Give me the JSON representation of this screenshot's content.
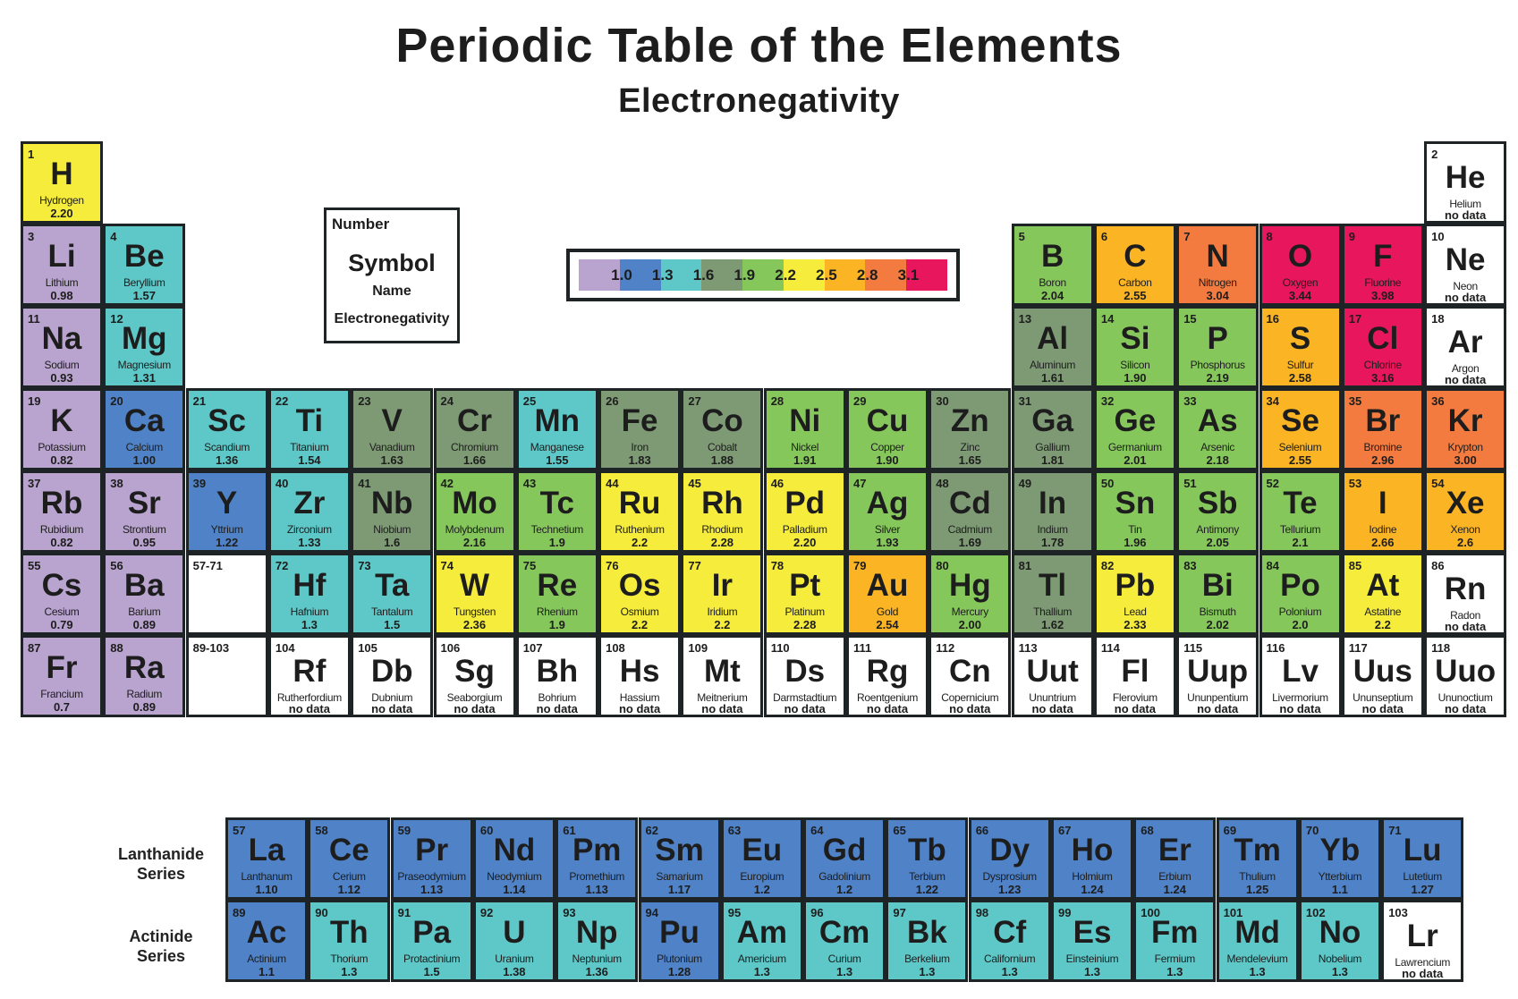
{
  "title": "Periodic Table of the Elements",
  "subtitle": "Electronegativity",
  "key": {
    "number": "Number",
    "symbol": "Symbol",
    "name": "Name",
    "value": "Electronegativity"
  },
  "legend": {
    "bins": [
      {
        "max": 1.0,
        "color": "#b9a3cf",
        "label": "1.0"
      },
      {
        "max": 1.3,
        "color": "#4f82c6",
        "label": "1.3"
      },
      {
        "max": 1.6,
        "color": "#5ec8c8",
        "label": "1.6"
      },
      {
        "max": 1.9,
        "color": "#7e9a75",
        "label": "1.9"
      },
      {
        "max": 2.2,
        "color": "#86c75c",
        "label": "2.2"
      },
      {
        "max": 2.5,
        "color": "#f5ec3b",
        "label": "2.5"
      },
      {
        "max": 2.8,
        "color": "#fbb424",
        "label": "2.8"
      },
      {
        "max": 3.1,
        "color": "#f37b3f",
        "label": "3.1"
      },
      {
        "max": 99,
        "color": "#e8165c",
        "label": ""
      }
    ],
    "nodata_color": "#ffffff"
  },
  "placeholders": [
    {
      "label": "57-71",
      "period": 6,
      "group": 3
    },
    {
      "label": "89-103",
      "period": 7,
      "group": 3
    }
  ],
  "series_labels": {
    "lanthanide": "Lanthanide Series",
    "actinide": "Actinide Series"
  },
  "elements": [
    [
      1,
      "H",
      "Hydrogen",
      "2.20",
      1,
      1
    ],
    [
      2,
      "He",
      "Helium",
      "no data",
      1,
      18
    ],
    [
      3,
      "Li",
      "Lithium",
      "0.98",
      2,
      1
    ],
    [
      4,
      "Be",
      "Beryllium",
      "1.57",
      2,
      2
    ],
    [
      5,
      "B",
      "Boron",
      "2.04",
      2,
      13
    ],
    [
      6,
      "C",
      "Carbon",
      "2.55",
      2,
      14
    ],
    [
      7,
      "N",
      "Nitrogen",
      "3.04",
      2,
      15
    ],
    [
      8,
      "O",
      "Oxygen",
      "3.44",
      2,
      16
    ],
    [
      9,
      "F",
      "Fluorine",
      "3.98",
      2,
      17
    ],
    [
      10,
      "Ne",
      "Neon",
      "no data",
      2,
      18
    ],
    [
      11,
      "Na",
      "Sodium",
      "0.93",
      3,
      1
    ],
    [
      12,
      "Mg",
      "Magnesium",
      "1.31",
      3,
      2
    ],
    [
      13,
      "Al",
      "Aluminum",
      "1.61",
      3,
      13
    ],
    [
      14,
      "Si",
      "Silicon",
      "1.90",
      3,
      14
    ],
    [
      15,
      "P",
      "Phosphorus",
      "2.19",
      3,
      15
    ],
    [
      16,
      "S",
      "Sulfur",
      "2.58",
      3,
      16
    ],
    [
      17,
      "Cl",
      "Chlorine",
      "3.16",
      3,
      17
    ],
    [
      18,
      "Ar",
      "Argon",
      "no data",
      3,
      18
    ],
    [
      19,
      "K",
      "Potassium",
      "0.82",
      4,
      1
    ],
    [
      20,
      "Ca",
      "Calcium",
      "1.00",
      4,
      2
    ],
    [
      21,
      "Sc",
      "Scandium",
      "1.36",
      4,
      3
    ],
    [
      22,
      "Ti",
      "Titanium",
      "1.54",
      4,
      4
    ],
    [
      23,
      "V",
      "Vanadium",
      "1.63",
      4,
      5
    ],
    [
      24,
      "Cr",
      "Chromium",
      "1.66",
      4,
      6
    ],
    [
      25,
      "Mn",
      "Manganese",
      "1.55",
      4,
      7
    ],
    [
      26,
      "Fe",
      "Iron",
      "1.83",
      4,
      8
    ],
    [
      27,
      "Co",
      "Cobalt",
      "1.88",
      4,
      9
    ],
    [
      28,
      "Ni",
      "Nickel",
      "1.91",
      4,
      10
    ],
    [
      29,
      "Cu",
      "Copper",
      "1.90",
      4,
      11
    ],
    [
      30,
      "Zn",
      "Zinc",
      "1.65",
      4,
      12
    ],
    [
      31,
      "Ga",
      "Gallium",
      "1.81",
      4,
      13
    ],
    [
      32,
      "Ge",
      "Germanium",
      "2.01",
      4,
      14
    ],
    [
      33,
      "As",
      "Arsenic",
      "2.18",
      4,
      15
    ],
    [
      34,
      "Se",
      "Selenium",
      "2.55",
      4,
      16
    ],
    [
      35,
      "Br",
      "Bromine",
      "2.96",
      4,
      17
    ],
    [
      36,
      "Kr",
      "Krypton",
      "3.00",
      4,
      18
    ],
    [
      37,
      "Rb",
      "Rubidium",
      "0.82",
      5,
      1
    ],
    [
      38,
      "Sr",
      "Strontium",
      "0.95",
      5,
      2
    ],
    [
      39,
      "Y",
      "Yttrium",
      "1.22",
      5,
      3
    ],
    [
      40,
      "Zr",
      "Zirconium",
      "1.33",
      5,
      4
    ],
    [
      41,
      "Nb",
      "Niobium",
      "1.6",
      5,
      5
    ],
    [
      42,
      "Mo",
      "Molybdenum",
      "2.16",
      5,
      6
    ],
    [
      43,
      "Tc",
      "Technetium",
      "1.9",
      5,
      7
    ],
    [
      44,
      "Ru",
      "Ruthenium",
      "2.2",
      5,
      8
    ],
    [
      45,
      "Rh",
      "Rhodium",
      "2.28",
      5,
      9
    ],
    [
      46,
      "Pd",
      "Palladium",
      "2.20",
      5,
      10
    ],
    [
      47,
      "Ag",
      "Silver",
      "1.93",
      5,
      11
    ],
    [
      48,
      "Cd",
      "Cadmium",
      "1.69",
      5,
      12
    ],
    [
      49,
      "In",
      "Indium",
      "1.78",
      5,
      13
    ],
    [
      50,
      "Sn",
      "Tin",
      "1.96",
      5,
      14
    ],
    [
      51,
      "Sb",
      "Antimony",
      "2.05",
      5,
      15
    ],
    [
      52,
      "Te",
      "Tellurium",
      "2.1",
      5,
      16
    ],
    [
      53,
      "I",
      "Iodine",
      "2.66",
      5,
      17
    ],
    [
      54,
      "Xe",
      "Xenon",
      "2.6",
      5,
      18
    ],
    [
      55,
      "Cs",
      "Cesium",
      "0.79",
      6,
      1
    ],
    [
      56,
      "Ba",
      "Barium",
      "0.89",
      6,
      2
    ],
    [
      72,
      "Hf",
      "Hafnium",
      "1.3",
      6,
      4
    ],
    [
      73,
      "Ta",
      "Tantalum",
      "1.5",
      6,
      5
    ],
    [
      74,
      "W",
      "Tungsten",
      "2.36",
      6,
      6
    ],
    [
      75,
      "Re",
      "Rhenium",
      "1.9",
      6,
      7
    ],
    [
      76,
      "Os",
      "Osmium",
      "2.2",
      6,
      8
    ],
    [
      77,
      "Ir",
      "Iridium",
      "2.2",
      6,
      9
    ],
    [
      78,
      "Pt",
      "Platinum",
      "2.28",
      6,
      10
    ],
    [
      79,
      "Au",
      "Gold",
      "2.54",
      6,
      11
    ],
    [
      80,
      "Hg",
      "Mercury",
      "2.00",
      6,
      12
    ],
    [
      81,
      "Tl",
      "Thallium",
      "1.62",
      6,
      13
    ],
    [
      82,
      "Pb",
      "Lead",
      "2.33",
      6,
      14
    ],
    [
      83,
      "Bi",
      "Bismuth",
      "2.02",
      6,
      15
    ],
    [
      84,
      "Po",
      "Polonium",
      "2.0",
      6,
      16
    ],
    [
      85,
      "At",
      "Astatine",
      "2.2",
      6,
      17
    ],
    [
      86,
      "Rn",
      "Radon",
      "no data",
      6,
      18
    ],
    [
      87,
      "Fr",
      "Francium",
      "0.7",
      7,
      1
    ],
    [
      88,
      "Ra",
      "Radium",
      "0.89",
      7,
      2
    ],
    [
      104,
      "Rf",
      "Rutherfordium",
      "no data",
      7,
      4
    ],
    [
      105,
      "Db",
      "Dubnium",
      "no data",
      7,
      5
    ],
    [
      106,
      "Sg",
      "Seaborgium",
      "no data",
      7,
      6
    ],
    [
      107,
      "Bh",
      "Bohrium",
      "no data",
      7,
      7
    ],
    [
      108,
      "Hs",
      "Hassium",
      "no data",
      7,
      8
    ],
    [
      109,
      "Mt",
      "Meitnerium",
      "no data",
      7,
      9
    ],
    [
      110,
      "Ds",
      "Darmstadtium",
      "no data",
      7,
      10
    ],
    [
      111,
      "Rg",
      "Roentgenium",
      "no data",
      7,
      11
    ],
    [
      112,
      "Cn",
      "Copernicium",
      "no data",
      7,
      12
    ],
    [
      113,
      "Uut",
      "Ununtrium",
      "no data",
      7,
      13
    ],
    [
      114,
      "Fl",
      "Flerovium",
      "no data",
      7,
      14
    ],
    [
      115,
      "Uup",
      "Ununpentium",
      "no data",
      7,
      15
    ],
    [
      116,
      "Lv",
      "Livermorium",
      "no data",
      7,
      16
    ],
    [
      117,
      "Uus",
      "Ununseptium",
      "no data",
      7,
      17
    ],
    [
      118,
      "Uuo",
      "Ununoctium",
      "no data",
      7,
      18
    ]
  ],
  "lanthanides": [
    [
      57,
      "La",
      "Lanthanum",
      "1.10"
    ],
    [
      58,
      "Ce",
      "Cerium",
      "1.12"
    ],
    [
      59,
      "Pr",
      "Praseodymium",
      "1.13"
    ],
    [
      60,
      "Nd",
      "Neodymium",
      "1.14"
    ],
    [
      61,
      "Pm",
      "Promethium",
      "1.13"
    ],
    [
      62,
      "Sm",
      "Samarium",
      "1.17"
    ],
    [
      63,
      "Eu",
      "Europium",
      "1.2"
    ],
    [
      64,
      "Gd",
      "Gadolinium",
      "1.2"
    ],
    [
      65,
      "Tb",
      "Terbium",
      "1.22"
    ],
    [
      66,
      "Dy",
      "Dysprosium",
      "1.23"
    ],
    [
      67,
      "Ho",
      "Holmium",
      "1.24"
    ],
    [
      68,
      "Er",
      "Erbium",
      "1.24"
    ],
    [
      69,
      "Tm",
      "Thulium",
      "1.25"
    ],
    [
      70,
      "Yb",
      "Ytterbium",
      "1.1"
    ],
    [
      71,
      "Lu",
      "Lutetium",
      "1.27"
    ]
  ],
  "actinides": [
    [
      89,
      "Ac",
      "Actinium",
      "1.1"
    ],
    [
      90,
      "Th",
      "Thorium",
      "1.3"
    ],
    [
      91,
      "Pa",
      "Protactinium",
      "1.5"
    ],
    [
      92,
      "U",
      "Uranium",
      "1.38"
    ],
    [
      93,
      "Np",
      "Neptunium",
      "1.36"
    ],
    [
      94,
      "Pu",
      "Plutonium",
      "1.28"
    ],
    [
      95,
      "Am",
      "Americium",
      "1.3"
    ],
    [
      96,
      "Cm",
      "Curium",
      "1.3"
    ],
    [
      97,
      "Bk",
      "Berkelium",
      "1.3"
    ],
    [
      98,
      "Cf",
      "Californium",
      "1.3"
    ],
    [
      99,
      "Es",
      "Einsteinium",
      "1.3"
    ],
    [
      100,
      "Fm",
      "Fermium",
      "1.3"
    ],
    [
      101,
      "Md",
      "Mendelevium",
      "1.3"
    ],
    [
      102,
      "No",
      "Nobelium",
      "1.3"
    ],
    [
      103,
      "Lr",
      "Lawrencium",
      "no data"
    ]
  ]
}
